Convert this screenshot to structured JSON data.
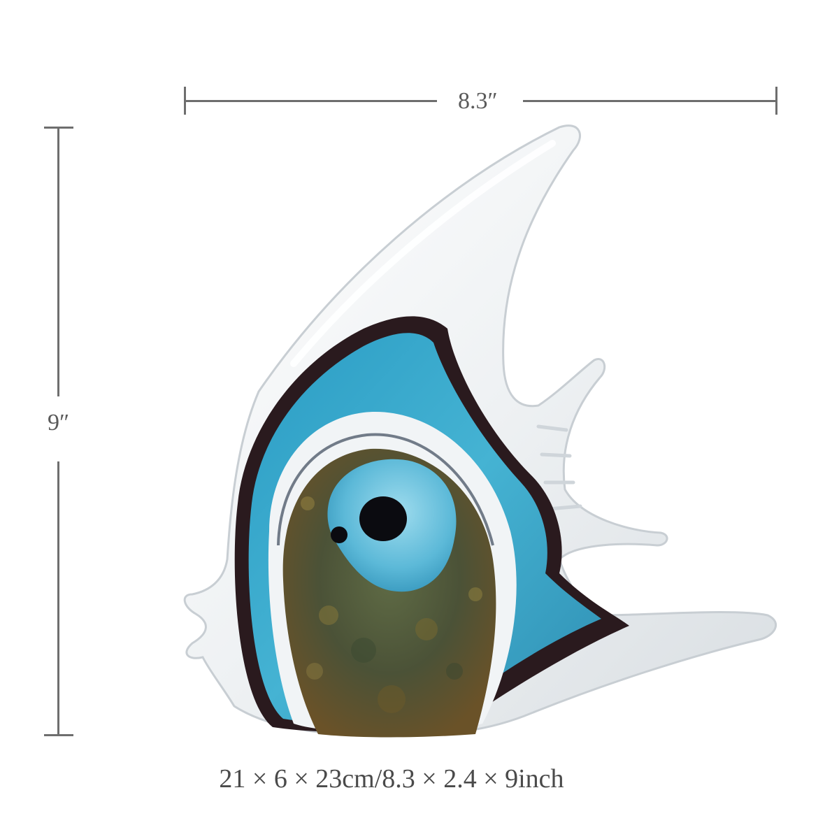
{
  "dimensions": {
    "width_label": "8.3″",
    "height_label": "9″",
    "caption": "21 × 6 × 23cm/8.3 × 2.4 × 9inch"
  },
  "colors": {
    "line": "#6e6e6e",
    "glass_clear": "#f4f6f8",
    "glass_blue": "#38a9c9",
    "glass_dark": "#2a1a1e",
    "core_green": "#4e5a3a",
    "eye_blue": "#6cc4de",
    "eye_pupil": "#0b0b10"
  }
}
